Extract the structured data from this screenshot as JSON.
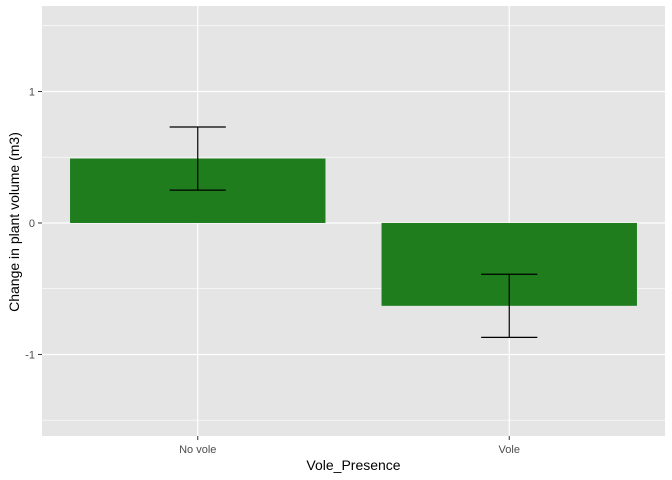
{
  "chart_data": {
    "type": "bar",
    "categories": [
      "No vole",
      "Vole"
    ],
    "values": [
      0.49,
      -0.63
    ],
    "error_bars": {
      "upper": [
        0.73,
        -0.39
      ],
      "lower": [
        0.25,
        -0.87
      ]
    },
    "xlabel": "Vole_Presence",
    "ylabel": "Change in plant volume (m3)",
    "ylim": [
      -1.62,
      1.65
    ],
    "yticks": [
      -1,
      0,
      1
    ],
    "ytick_labels": [
      "-1",
      "0",
      "1"
    ],
    "grid": true,
    "legend": "none",
    "colors": {
      "bar": "#1f7d1e",
      "panel": "#e5e5e5",
      "grid": "#ffffff",
      "errorbar": "#000000"
    }
  }
}
